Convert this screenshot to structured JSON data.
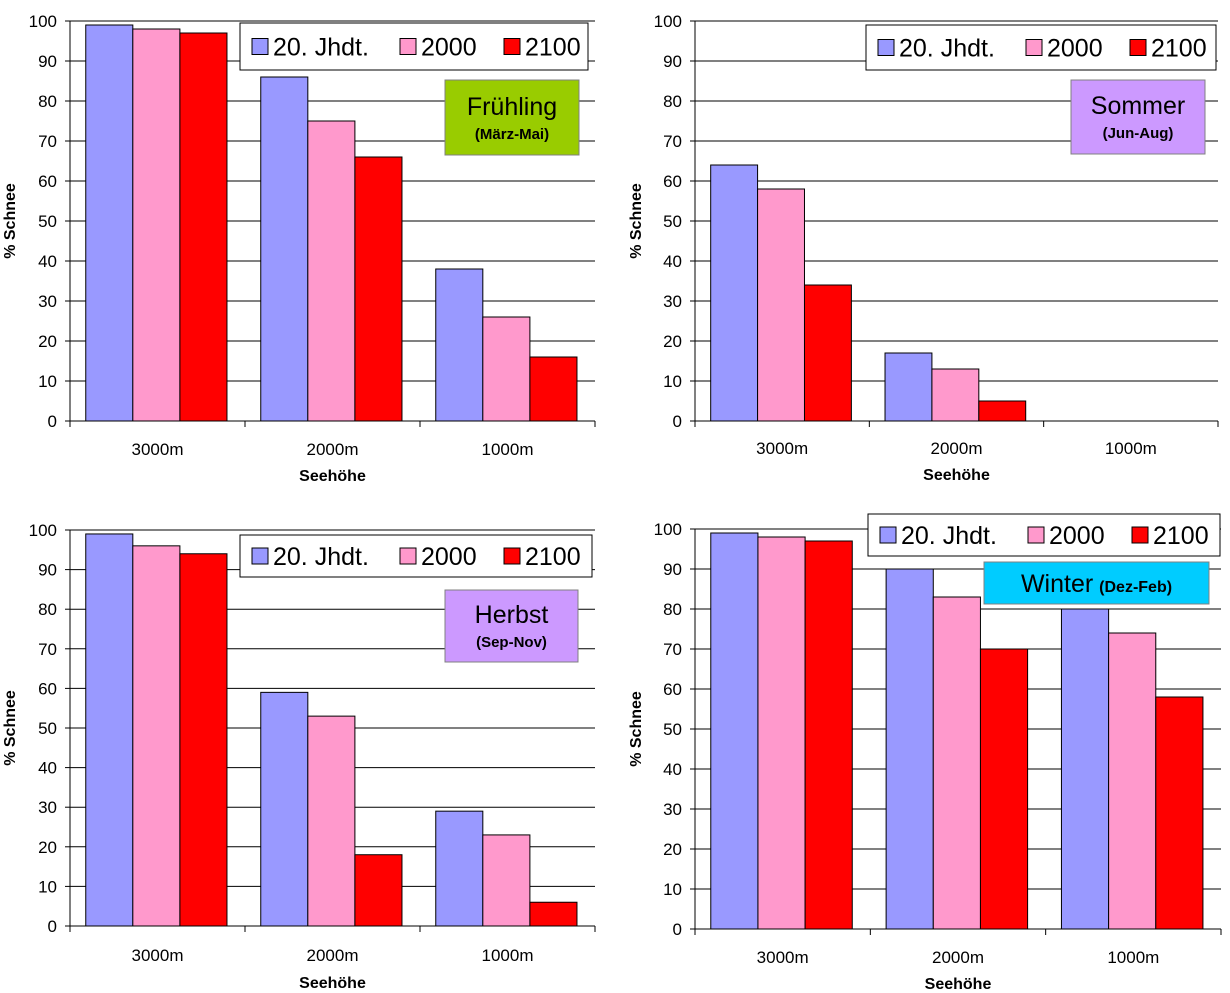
{
  "colors": {
    "series": [
      "#9999ff",
      "#ff99cc",
      "#ff0000"
    ],
    "edge": "#000000",
    "grid": "#000000",
    "season_bg": [
      "#99cc00",
      "#cc99ff",
      "#cc99ff",
      "#00ccff"
    ]
  },
  "chart_data": [
    {
      "type": "bar",
      "season_name": "Frühling",
      "season_period": "(März-Mai)",
      "categories": [
        "3000m",
        "2000m",
        "1000m"
      ],
      "series": [
        {
          "name": "20. Jhdt.",
          "values": [
            99,
            86,
            38
          ]
        },
        {
          "name": "2000",
          "values": [
            98,
            75,
            26
          ]
        },
        {
          "name": "2100",
          "values": [
            97,
            66,
            16
          ]
        }
      ],
      "xlabel": "Seehöhe",
      "ylabel": "% Schnee",
      "ylim": [
        0,
        100
      ],
      "yticks": [
        0,
        10,
        20,
        30,
        40,
        50,
        60,
        70,
        80,
        90,
        100
      ],
      "grid": true,
      "legend": "top-right"
    },
    {
      "type": "bar",
      "season_name": "Sommer",
      "season_period": "(Jun-Aug)",
      "categories": [
        "3000m",
        "2000m",
        "1000m"
      ],
      "series": [
        {
          "name": "20. Jhdt.",
          "values": [
            64,
            17,
            0
          ]
        },
        {
          "name": "2000",
          "values": [
            58,
            13,
            0
          ]
        },
        {
          "name": "2100",
          "values": [
            34,
            5,
            0
          ]
        }
      ],
      "xlabel": "Seehöhe",
      "ylabel": "% Schnee",
      "ylim": [
        0,
        100
      ],
      "yticks": [
        0,
        10,
        20,
        30,
        40,
        50,
        60,
        70,
        80,
        90,
        100
      ],
      "grid": true,
      "legend": "top-right"
    },
    {
      "type": "bar",
      "season_name": "Herbst",
      "season_period": "(Sep-Nov)",
      "categories": [
        "3000m",
        "2000m",
        "1000m"
      ],
      "series": [
        {
          "name": "20. Jhdt.",
          "values": [
            99,
            59,
            29
          ]
        },
        {
          "name": "2000",
          "values": [
            96,
            53,
            23
          ]
        },
        {
          "name": "2100",
          "values": [
            94,
            18,
            6
          ]
        }
      ],
      "xlabel": "Seehöhe",
      "ylabel": "% Schnee",
      "ylim": [
        0,
        100
      ],
      "yticks": [
        0,
        10,
        20,
        30,
        40,
        50,
        60,
        70,
        80,
        90,
        100
      ],
      "grid": true,
      "legend": "top-right"
    },
    {
      "type": "bar",
      "season_name": "Winter",
      "season_period": "(Dez-Feb)",
      "categories": [
        "3000m",
        "2000m",
        "1000m"
      ],
      "series": [
        {
          "name": "20. Jhdt.",
          "values": [
            99,
            90,
            80
          ]
        },
        {
          "name": "2000",
          "values": [
            98,
            83,
            74
          ]
        },
        {
          "name": "2100",
          "values": [
            97,
            70,
            58
          ]
        }
      ],
      "xlabel": "Seehöhe",
      "ylabel": "% Schnee",
      "ylim": [
        0,
        100
      ],
      "yticks": [
        0,
        10,
        20,
        30,
        40,
        50,
        60,
        70,
        80,
        90,
        100
      ],
      "grid": true,
      "legend": "top-right"
    }
  ]
}
